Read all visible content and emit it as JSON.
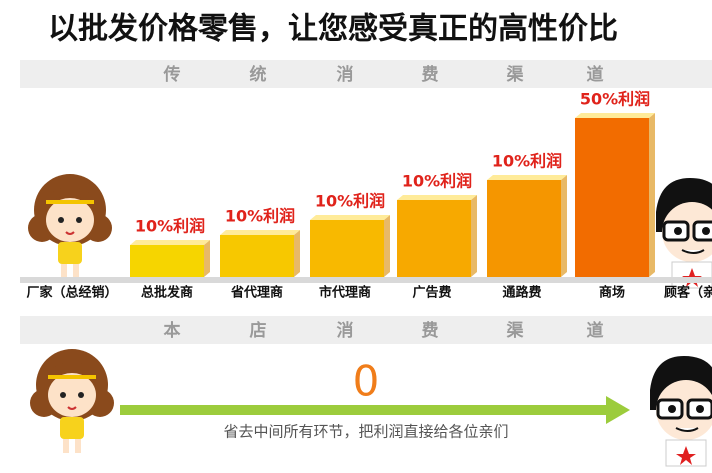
{
  "title": "以批发价格零售，让您感受真正的高性价比",
  "traditional": {
    "heading": [
      "传",
      "统",
      "消",
      "费",
      "渠",
      "道"
    ],
    "steps": [
      {
        "label": "厂家（总经销）"
      },
      {
        "label": "总批发商",
        "profit": "10%利润"
      },
      {
        "label": "省代理商",
        "profit": "10%利润"
      },
      {
        "label": "市代理商",
        "profit": "10%利润"
      },
      {
        "label": "广告费",
        "profit": "10%利润"
      },
      {
        "label": "通路费",
        "profit": "10%利润"
      },
      {
        "label": "商场",
        "profit": "50%利润"
      },
      {
        "label": "顾客（亲"
      }
    ]
  },
  "direct": {
    "heading": [
      "本",
      "店",
      "消",
      "费",
      "渠",
      "道"
    ],
    "value": "0",
    "caption": "省去中间所有环节，把利润直接给各位亲们"
  }
}
